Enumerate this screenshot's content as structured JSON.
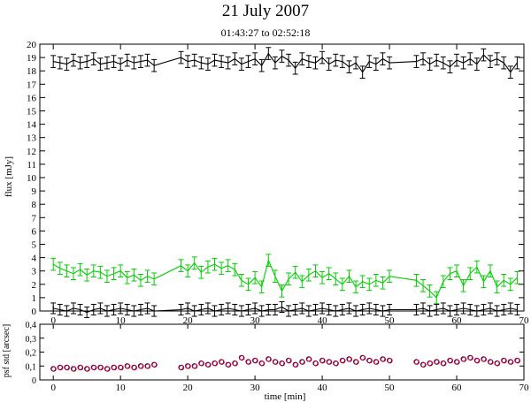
{
  "title": "21 July 2007",
  "subtitle": "01:43:27 to 02:52:18",
  "chart_data": [
    {
      "type": "line",
      "ylabel": "flux [mJy]",
      "xlim": [
        -2,
        70
      ],
      "ylim": [
        0,
        20
      ],
      "xticks": [
        0,
        10,
        20,
        30,
        40,
        50,
        60,
        70
      ],
      "yticks": [
        0,
        1,
        2,
        3,
        4,
        5,
        6,
        7,
        8,
        9,
        10,
        11,
        12,
        13,
        14,
        15,
        16,
        17,
        18,
        19,
        20
      ],
      "series": [
        {
          "color": "#000000",
          "error_bars": true,
          "x": [
            0,
            1,
            2,
            3,
            4,
            5,
            6,
            7,
            8,
            9,
            10,
            11,
            12,
            13,
            14,
            15,
            19,
            20,
            21,
            22,
            23,
            24,
            25,
            26,
            27,
            28,
            29,
            30,
            31,
            32,
            33,
            34,
            35,
            36,
            37,
            38,
            39,
            40,
            41,
            42,
            43,
            44,
            45,
            46,
            47,
            48,
            49,
            50,
            54,
            55,
            56,
            57,
            58,
            59,
            60,
            61,
            62,
            63,
            64,
            65,
            66,
            67,
            68,
            69
          ],
          "y": [
            18.7,
            18.6,
            18.5,
            18.8,
            18.6,
            18.7,
            18.9,
            18.5,
            18.6,
            18.7,
            18.5,
            18.8,
            18.6,
            18.7,
            18.8,
            18.4,
            19.0,
            18.7,
            18.8,
            18.6,
            18.5,
            18.8,
            18.7,
            18.6,
            18.9,
            18.5,
            18.7,
            18.9,
            18.4,
            19.3,
            18.6,
            19.1,
            18.8,
            18.2,
            18.9,
            18.7,
            18.6,
            19.0,
            18.5,
            18.8,
            18.7,
            18.3,
            18.6,
            17.9,
            18.7,
            18.5,
            18.9,
            18.6,
            18.7,
            18.9,
            18.5,
            18.8,
            18.6,
            18.3,
            18.8,
            18.6,
            18.9,
            18.5,
            19.2,
            18.7,
            18.9,
            18.6,
            17.9,
            18.6
          ],
          "err": 0.45
        },
        {
          "color": "#00d000",
          "error_bars": true,
          "x": [
            0,
            1,
            2,
            3,
            4,
            5,
            6,
            7,
            8,
            9,
            10,
            11,
            12,
            13,
            14,
            15,
            19,
            20,
            21,
            22,
            23,
            24,
            25,
            26,
            27,
            28,
            29,
            30,
            31,
            32,
            33,
            34,
            35,
            36,
            37,
            38,
            39,
            40,
            41,
            42,
            43,
            44,
            45,
            46,
            47,
            48,
            49,
            50,
            54,
            55,
            56,
            57,
            58,
            59,
            60,
            61,
            62,
            63,
            64,
            65,
            66,
            67,
            68,
            69
          ],
          "y": [
            3.5,
            3.2,
            3.0,
            2.8,
            3.1,
            2.7,
            3.0,
            2.9,
            2.6,
            2.8,
            3.0,
            2.5,
            2.7,
            2.3,
            2.6,
            2.4,
            3.4,
            3.0,
            3.6,
            2.9,
            3.3,
            3.5,
            3.2,
            3.4,
            3.1,
            2.3,
            2.0,
            2.5,
            1.8,
            3.8,
            2.6,
            1.5,
            2.4,
            2.9,
            2.2,
            2.7,
            3.0,
            2.5,
            2.8,
            2.4,
            2.0,
            2.6,
            1.8,
            2.2,
            2.0,
            2.3,
            2.1,
            2.6,
            2.3,
            1.9,
            1.5,
            1.0,
            2.2,
            2.8,
            3.0,
            1.9,
            2.8,
            3.3,
            2.2,
            3.0,
            1.8,
            2.3,
            2.0,
            2.5
          ],
          "err": 0.45
        },
        {
          "color": "#000000",
          "error_bars": true,
          "x": [
            0,
            1,
            2,
            3,
            4,
            5,
            6,
            7,
            8,
            9,
            10,
            11,
            12,
            13,
            14,
            15,
            19,
            20,
            21,
            22,
            23,
            24,
            25,
            26,
            27,
            28,
            29,
            30,
            31,
            32,
            33,
            34,
            35,
            36,
            37,
            38,
            39,
            40,
            41,
            42,
            43,
            44,
            45,
            46,
            47,
            48,
            49,
            50,
            54,
            55,
            56,
            57,
            58,
            59,
            60,
            61,
            62,
            63,
            64,
            65,
            66,
            67,
            68,
            69
          ],
          "y": [
            0.2,
            0.1,
            0.0,
            0.2,
            0.1,
            -0.1,
            0.1,
            0.2,
            0.0,
            0.1,
            0.2,
            0.1,
            0.0,
            0.1,
            0.2,
            0.0,
            0.1,
            0.2,
            0.0,
            0.1,
            0.2,
            0.0,
            0.1,
            0.2,
            0.1,
            0.0,
            0.1,
            0.2,
            0.0,
            0.1,
            0.1,
            0.3,
            0.0,
            0.1,
            0.2,
            0.0,
            0.1,
            0.2,
            0.1,
            0.0,
            0.1,
            0.2,
            0.0,
            0.1,
            0.2,
            0.1,
            0.0,
            0.1,
            0.1,
            0.2,
            0.0,
            0.1,
            0.2,
            0.0,
            0.1,
            0.2,
            0.1,
            0.0,
            0.1,
            0.2,
            0.0,
            0.1,
            0.2,
            0.1
          ],
          "err": 0.4
        }
      ]
    },
    {
      "type": "scatter",
      "xlabel": "time [min]",
      "ylabel": "psf std [arcsec]",
      "xlim": [
        -2,
        70
      ],
      "ylim": [
        0,
        0.4
      ],
      "xticks": [
        0,
        10,
        20,
        30,
        40,
        50,
        60,
        70
      ],
      "yticks": [
        0,
        0.1,
        0.2,
        0.3,
        0.4
      ],
      "ytick_labels": [
        "0",
        "0,1",
        "0,2",
        "0,3",
        "0,4"
      ],
      "marker": "open-circle",
      "colors": [
        "#0000cc",
        "#cc0000"
      ],
      "x": [
        0,
        1,
        2,
        3,
        4,
        5,
        6,
        7,
        8,
        9,
        10,
        11,
        12,
        13,
        14,
        15,
        19,
        20,
        21,
        22,
        23,
        24,
        25,
        26,
        27,
        28,
        29,
        30,
        31,
        32,
        33,
        34,
        35,
        36,
        37,
        38,
        39,
        40,
        41,
        42,
        43,
        44,
        45,
        46,
        47,
        48,
        49,
        50,
        54,
        55,
        56,
        57,
        58,
        59,
        60,
        61,
        62,
        63,
        64,
        65,
        66,
        67,
        68,
        69
      ],
      "y": [
        0.08,
        0.09,
        0.09,
        0.08,
        0.09,
        0.08,
        0.09,
        0.09,
        0.08,
        0.09,
        0.09,
        0.1,
        0.09,
        0.1,
        0.1,
        0.11,
        0.09,
        0.1,
        0.1,
        0.12,
        0.11,
        0.12,
        0.13,
        0.11,
        0.12,
        0.16,
        0.13,
        0.14,
        0.12,
        0.15,
        0.13,
        0.12,
        0.14,
        0.11,
        0.13,
        0.15,
        0.12,
        0.14,
        0.13,
        0.12,
        0.14,
        0.15,
        0.13,
        0.16,
        0.14,
        0.13,
        0.15,
        0.14,
        0.13,
        0.11,
        0.12,
        0.13,
        0.12,
        0.14,
        0.13,
        0.15,
        0.16,
        0.14,
        0.15,
        0.13,
        0.12,
        0.14,
        0.13,
        0.14
      ]
    }
  ]
}
